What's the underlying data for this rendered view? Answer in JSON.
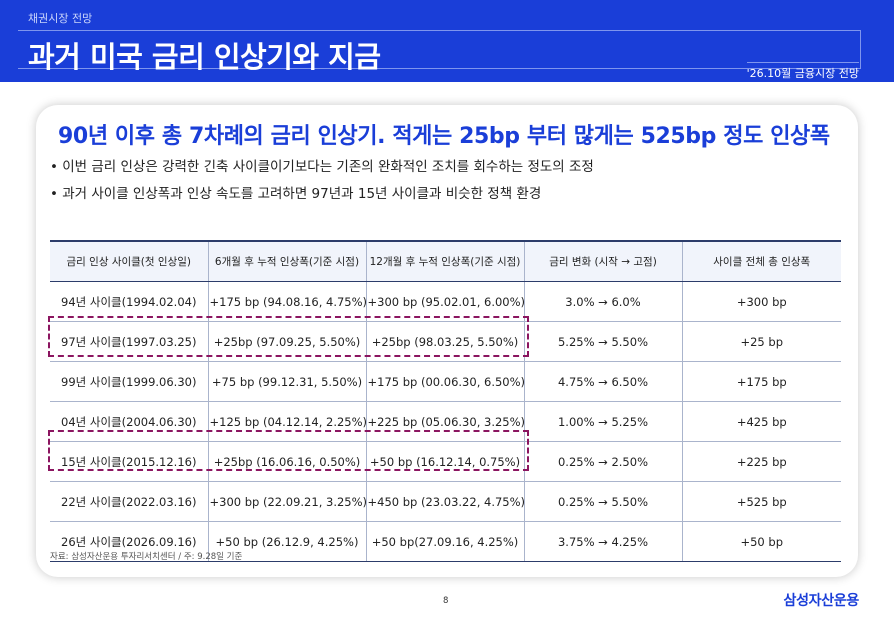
{
  "header": {
    "section": "채권시장 전망",
    "title": "과거 미국 금리 인상기와 지금",
    "report_tag": "'26.10월 금융시장 전망"
  },
  "card": {
    "headline": "90년 이후 총 7차례의 금리 인상기. 적게는 25bp 부터 많게는 525bp 정도 인상폭",
    "bullets": [
      "• 이번 금리 인상은 강력한 긴축 사이클이기보다는 기존의 완화적인 조치를 회수하는 정도의 조정",
      "• 과거 사이클 인상폭과 인상 속도를 고려하면 97년과 15년 사이클과 비슷한 정책 환경"
    ]
  },
  "table": {
    "headers": [
      "금리 인상 사이클(첫 인상일)",
      "6개월 후 누적 인상폭(기준 시점)",
      "12개월 후 누적 인상폭(기준 시점)",
      "금리 변화 (시작 → 고점)",
      "사이클 전체 총 인상폭"
    ],
    "rows": [
      [
        "94년 사이클(1994.02.04)",
        "+175 bp (94.08.16, 4.75%)",
        "+300 bp (95.02.01, 6.00%)",
        "3.0% → 6.0%",
        "+300 bp"
      ],
      [
        "97년 사이클(1997.03.25)",
        "+25bp (97.09.25, 5.50%)",
        "+25bp (98.03.25, 5.50%)",
        "5.25% → 5.50%",
        "+25 bp"
      ],
      [
        "99년 사이클(1999.06.30)",
        "+75 bp (99.12.31, 5.50%)",
        "+175 bp (00.06.30, 6.50%)",
        "4.75% → 6.50%",
        "+175 bp"
      ],
      [
        "04년 사이클(2004.06.30)",
        "+125 bp (04.12.14, 2.25%)",
        "+225 bp (05.06.30, 3.25%)",
        "1.00% → 5.25%",
        "+425 bp"
      ],
      [
        "15년 사이클(2015.12.16)",
        "+25bp (16.06.16, 0.50%)",
        "+50 bp (16.12.14, 0.75%)",
        "0.25% → 2.50%",
        "+225 bp"
      ],
      [
        "22년 사이클(2022.03.16)",
        "+300 bp (22.09.21, 3.25%)",
        "+450 bp (23.03.22, 4.75%)",
        "0.25% → 5.50%",
        "+525 bp"
      ],
      [
        "26년 사이클(2026.09.16)",
        "+50 bp (26.12.9, 4.25%)",
        "+50 bp(27.09.16, 4.25%)",
        "3.75% → 4.25%",
        "+50 bp"
      ]
    ],
    "highlighted_rows": [
      1,
      4
    ]
  },
  "footer": {
    "source": "자료: 삼성자산운용 투자리서치센터 / 주: 9.28일 기준",
    "page_number": "8",
    "brand": "삼성자산운용"
  },
  "colors": {
    "brand_blue": "#1a3ed8",
    "highlight_magenta": "#8b1560",
    "table_header_bg": "#f1f4fb"
  }
}
